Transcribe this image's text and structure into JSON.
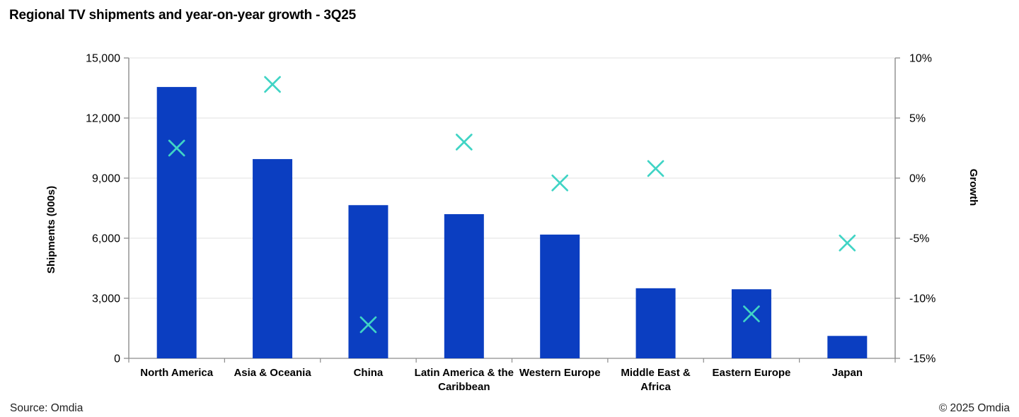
{
  "title": "Regional TV shipments and year-on-year growth - 3Q25",
  "footer": {
    "source": "Source: Omdia",
    "copyright": "© 2025 Omdia"
  },
  "chart_data": {
    "type": "combo-bar-scatter",
    "title": "Regional TV shipments and year-on-year growth - 3Q25",
    "categories": [
      "North America",
      "Asia & Oceania",
      "China",
      "Latin America & the Caribbean",
      "Western Europe",
      "Middle East & Africa",
      "Eastern Europe",
      "Japan"
    ],
    "category_label_lines": [
      [
        "North America"
      ],
      [
        "Asia & Oceania"
      ],
      [
        "China"
      ],
      [
        "Latin America & the",
        "Caribbean"
      ],
      [
        "Western Europe"
      ],
      [
        "Middle East &",
        "Africa"
      ],
      [
        "Eastern Europe"
      ],
      [
        "Japan"
      ]
    ],
    "series": [
      {
        "name": "Shipments (000s)",
        "type": "bar",
        "axis": "left",
        "values": [
          13550,
          9950,
          7650,
          7200,
          6180,
          3500,
          3450,
          1120
        ]
      },
      {
        "name": "Growth",
        "type": "scatter-x-marker",
        "axis": "right",
        "values": [
          2.5,
          7.8,
          -12.2,
          3.0,
          -0.4,
          0.8,
          -11.3,
          -5.4
        ]
      }
    ],
    "left_axis": {
      "label": "Shipments (000s)",
      "min": 0,
      "max": 15000,
      "tick_step": 3000,
      "ticks": [
        "15,000",
        "12,000",
        "9,000",
        "6,000",
        "3,000",
        "0"
      ]
    },
    "right_axis": {
      "label": "Growth",
      "min": -15,
      "max": 10,
      "tick_step": 5,
      "ticks": [
        "10%",
        "5%",
        "0%",
        "-5%",
        "-10%",
        "-15%"
      ]
    },
    "grid": "horizontal",
    "legend": "none",
    "colors": {
      "bar": "#0b3ec1",
      "marker": "#40d4c5",
      "gridline": "#e7e7e7",
      "axis_line": "#8c8c8c",
      "text": "#000000"
    }
  }
}
